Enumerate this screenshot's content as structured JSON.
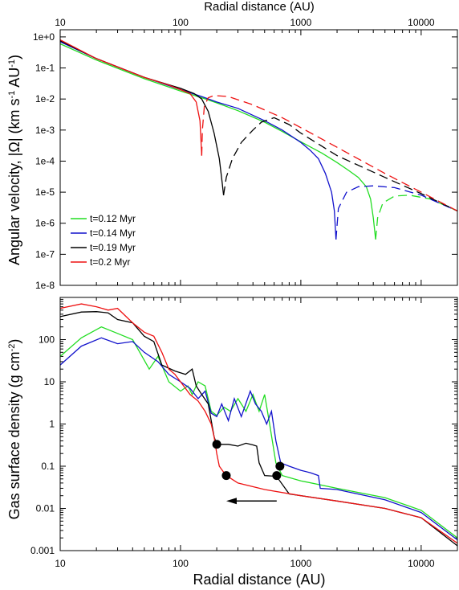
{
  "chart_data": [
    {
      "type": "line",
      "panel": "top",
      "xscale": "log",
      "yscale": "log",
      "xlim": [
        10,
        20000
      ],
      "ylim": [
        1e-08,
        2
      ],
      "xlabel": "Radial distance (AU)",
      "ylabel": "Angular velocity,  |Ω|  (km s⁻¹ AU⁻¹)",
      "ylabel_parts": {
        "main": "Angular velocity,  |Ω|  (km s",
        "exp1": "-1",
        "mid": " AU",
        "exp2": "-1",
        "end": ")"
      },
      "x_ticks": [
        "10",
        "100",
        "1000",
        "10000"
      ],
      "y_ticks": [
        "1e+0",
        "1e-1",
        "1e-2",
        "1e-3",
        "1e-4",
        "1e-5",
        "1e-6",
        "1e-7",
        "1e-8"
      ],
      "legend": {
        "placement": "lower-left"
      },
      "note": "dashed segments denote negative Ω",
      "series": [
        {
          "name": "t=0.12 Myr",
          "color": "#22dd22",
          "solid": [
            [
              10,
              0.6
            ],
            [
              20,
              0.18
            ],
            [
              50,
              0.045
            ],
            [
              100,
              0.018
            ],
            [
              150,
              0.011
            ],
            [
              200,
              0.0075
            ],
            [
              300,
              0.0042
            ],
            [
              500,
              0.0018
            ],
            [
              700,
              0.0009
            ],
            [
              1000,
              0.00042
            ],
            [
              1500,
              0.00018
            ],
            [
              2000,
              9e-05
            ],
            [
              2500,
              5e-05
            ],
            [
              3000,
              3e-05
            ],
            [
              3500,
              1.5e-05
            ],
            [
              3800,
              6e-06
            ],
            [
              4000,
              1.5e-06
            ],
            [
              4180,
              3e-07
            ]
          ],
          "dashed": [
            [
              4180,
              3e-07
            ],
            [
              4350,
              1.5e-06
            ],
            [
              4800,
              4.5e-06
            ],
            [
              6000,
              7.5e-06
            ],
            [
              8000,
              8e-06
            ],
            [
              12000,
              6e-06
            ],
            [
              20000,
              2.5e-06
            ]
          ]
        },
        {
          "name": "t=0.14 Myr",
          "color": "#1111cc",
          "solid": [
            [
              10,
              0.7
            ],
            [
              20,
              0.2
            ],
            [
              50,
              0.05
            ],
            [
              100,
              0.02
            ],
            [
              150,
              0.012
            ],
            [
              200,
              0.008
            ],
            [
              300,
              0.005
            ],
            [
              500,
              0.002
            ],
            [
              700,
              0.001
            ],
            [
              1000,
              0.0004
            ],
            [
              1200,
              0.00022
            ],
            [
              1400,
              0.00012
            ],
            [
              1600,
              4e-05
            ],
            [
              1800,
              1e-05
            ],
            [
              1900,
              2.5e-06
            ],
            [
              1960,
              3e-07
            ]
          ],
          "dashed": [
            [
              1960,
              3e-07
            ],
            [
              2050,
              3e-06
            ],
            [
              2400,
              1e-05
            ],
            [
              3000,
              1.5e-05
            ],
            [
              4000,
              1.6e-05
            ],
            [
              6000,
              1.4e-05
            ],
            [
              10000,
              8e-06
            ],
            [
              20000,
              2.5e-06
            ]
          ]
        },
        {
          "name": "t=0.19 Myr",
          "color": "#000000",
          "solid": [
            [
              10,
              0.75
            ],
            [
              20,
              0.2
            ],
            [
              50,
              0.05
            ],
            [
              100,
              0.022
            ],
            [
              130,
              0.015
            ],
            [
              150,
              0.01
            ],
            [
              170,
              0.004
            ],
            [
              190,
              0.0008
            ],
            [
              210,
              0.00012
            ],
            [
              222,
              2e-05
            ],
            [
              228,
              8e-06
            ]
          ],
          "dashed": [
            [
              228,
              8e-06
            ],
            [
              240,
              3e-05
            ],
            [
              270,
              0.00012
            ],
            [
              320,
              0.0004
            ],
            [
              400,
              0.001
            ],
            [
              470,
              0.0018
            ],
            [
              600,
              0.0025
            ],
            [
              800,
              0.0015
            ],
            [
              1000,
              0.0008
            ],
            [
              2000,
              0.00015
            ],
            [
              5000,
              3e-05
            ],
            [
              10000,
              9e-06
            ],
            [
              20000,
              2.5e-06
            ]
          ]
        },
        {
          "name": "t=0.2 Myr",
          "color": "#ee1111",
          "solid": [
            [
              10,
              0.8
            ],
            [
              20,
              0.2
            ],
            [
              50,
              0.05
            ],
            [
              80,
              0.028
            ],
            [
              100,
              0.02
            ],
            [
              120,
              0.015
            ],
            [
              135,
              0.008
            ],
            [
              145,
              0.002
            ],
            [
              150,
              0.00015
            ]
          ],
          "dashed": [
            [
              150,
              0.00015
            ],
            [
              152,
              0.001
            ],
            [
              158,
              0.006
            ],
            [
              170,
              0.011
            ],
            [
              190,
              0.013
            ],
            [
              250,
              0.012
            ],
            [
              400,
              0.0065
            ],
            [
              700,
              0.0025
            ],
            [
              1000,
              0.0012
            ],
            [
              2000,
              0.00028
            ],
            [
              5000,
              4e-05
            ],
            [
              10000,
              1e-05
            ],
            [
              20000,
              2.5e-06
            ]
          ]
        }
      ]
    },
    {
      "type": "line",
      "panel": "bottom",
      "xscale": "log",
      "yscale": "log",
      "xlim": [
        10,
        20000
      ],
      "ylim": [
        0.001,
        1000
      ],
      "xlabel": "Radial distance (AU)",
      "ylabel": "Gas surface density (g cm⁻²)",
      "ylabel_parts": {
        "main": "Gas surface density (g cm",
        "exp": "-2",
        "end": ")"
      },
      "x_ticks": [
        "10",
        "100",
        "1000",
        "10000"
      ],
      "y_ticks": [
        "0.001",
        "0.01",
        "0.1",
        "1",
        "10",
        "100"
      ],
      "series": [
        {
          "name": "t=0.12 Myr",
          "color": "#22dd22",
          "points": [
            [
              10,
              40
            ],
            [
              15,
              110
            ],
            [
              22,
              200
            ],
            [
              30,
              140
            ],
            [
              40,
              100
            ],
            [
              55,
              20
            ],
            [
              65,
              40
            ],
            [
              80,
              10
            ],
            [
              100,
              6
            ],
            [
              115,
              8
            ],
            [
              125,
              5
            ],
            [
              140,
              10
            ],
            [
              160,
              8
            ],
            [
              180,
              2
            ],
            [
              200,
              1.6
            ],
            [
              230,
              2.5
            ],
            [
              260,
              2
            ],
            [
              300,
              4
            ],
            [
              350,
              2
            ],
            [
              400,
              5
            ],
            [
              450,
              2
            ],
            [
              500,
              5
            ],
            [
              550,
              1
            ],
            [
              620,
              0.12
            ],
            [
              700,
              0.06
            ],
            [
              1000,
              0.045
            ],
            [
              2000,
              0.03
            ],
            [
              5000,
              0.018
            ],
            [
              10000,
              0.009
            ],
            [
              20000,
              0.002
            ]
          ]
        },
        {
          "name": "t=0.14 Myr",
          "color": "#1111cc",
          "points": [
            [
              10,
              25
            ],
            [
              15,
              70
            ],
            [
              22,
              110
            ],
            [
              30,
              80
            ],
            [
              40,
              90
            ],
            [
              50,
              50
            ],
            [
              65,
              30
            ],
            [
              80,
              15
            ],
            [
              100,
              10
            ],
            [
              120,
              7
            ],
            [
              140,
              4
            ],
            [
              160,
              6
            ],
            [
              180,
              1.8
            ],
            [
              200,
              1.5
            ],
            [
              220,
              3
            ],
            [
              250,
              1.2
            ],
            [
              280,
              4
            ],
            [
              320,
              1.5
            ],
            [
              380,
              6
            ],
            [
              420,
              3
            ],
            [
              470,
              2
            ],
            [
              520,
              1
            ],
            [
              570,
              2
            ],
            [
              620,
              0.4
            ],
            [
              680,
              0.12
            ],
            [
              800,
              0.1
            ],
            [
              1000,
              0.08
            ],
            [
              1200,
              0.07
            ],
            [
              1400,
              0.06
            ],
            [
              1450,
              0.03
            ],
            [
              2000,
              0.028
            ],
            [
              5000,
              0.016
            ],
            [
              10000,
              0.008
            ],
            [
              20000,
              0.0018
            ]
          ]
        },
        {
          "name": "t=0.19 Myr",
          "color": "#000000",
          "points": [
            [
              10,
              350
            ],
            [
              15,
              450
            ],
            [
              20,
              460
            ],
            [
              25,
              430
            ],
            [
              30,
              300
            ],
            [
              40,
              250
            ],
            [
              50,
              120
            ],
            [
              60,
              90
            ],
            [
              70,
              25
            ],
            [
              90,
              18
            ],
            [
              110,
              15
            ],
            [
              125,
              20
            ],
            [
              135,
              8
            ],
            [
              150,
              5
            ],
            [
              170,
              3
            ],
            [
              190,
              0.5
            ],
            [
              200,
              0.33
            ],
            [
              250,
              0.33
            ],
            [
              300,
              0.3
            ],
            [
              350,
              0.35
            ],
            [
              400,
              0.32
            ],
            [
              430,
              0.3
            ],
            [
              450,
              0.12
            ],
            [
              500,
              0.06
            ],
            [
              600,
              0.058
            ],
            [
              650,
              0.05
            ],
            [
              800,
              0.022
            ],
            [
              2000,
              0.015
            ],
            [
              5000,
              0.01
            ],
            [
              10000,
              0.006
            ],
            [
              20000,
              0.0013
            ]
          ]
        },
        {
          "name": "t=0.2 Myr",
          "color": "#ee1111",
          "points": [
            [
              10,
              550
            ],
            [
              15,
              700
            ],
            [
              20,
              600
            ],
            [
              25,
              500
            ],
            [
              30,
              550
            ],
            [
              40,
              250
            ],
            [
              50,
              150
            ],
            [
              60,
              120
            ],
            [
              70,
              50
            ],
            [
              80,
              20
            ],
            [
              90,
              15
            ],
            [
              100,
              10
            ],
            [
              120,
              5
            ],
            [
              140,
              3.5
            ],
            [
              160,
              2
            ],
            [
              180,
              1
            ],
            [
              190,
              0.5
            ],
            [
              200,
              0.2
            ],
            [
              210,
              0.1
            ],
            [
              230,
              0.07
            ],
            [
              240,
              0.06
            ],
            [
              300,
              0.04
            ],
            [
              500,
              0.028
            ],
            [
              1000,
              0.02
            ],
            [
              2000,
              0.015
            ],
            [
              5000,
              0.01
            ],
            [
              10000,
              0.006
            ],
            [
              20000,
              0.0015
            ]
          ]
        }
      ],
      "markers": [
        [
          200,
          0.33
        ],
        [
          240,
          0.06
        ],
        [
          630,
          0.06
        ],
        [
          670,
          0.1
        ]
      ],
      "arrow": {
        "from": [
          630,
          0.015
        ],
        "to": [
          240,
          0.015
        ],
        "direction": "left"
      }
    }
  ]
}
